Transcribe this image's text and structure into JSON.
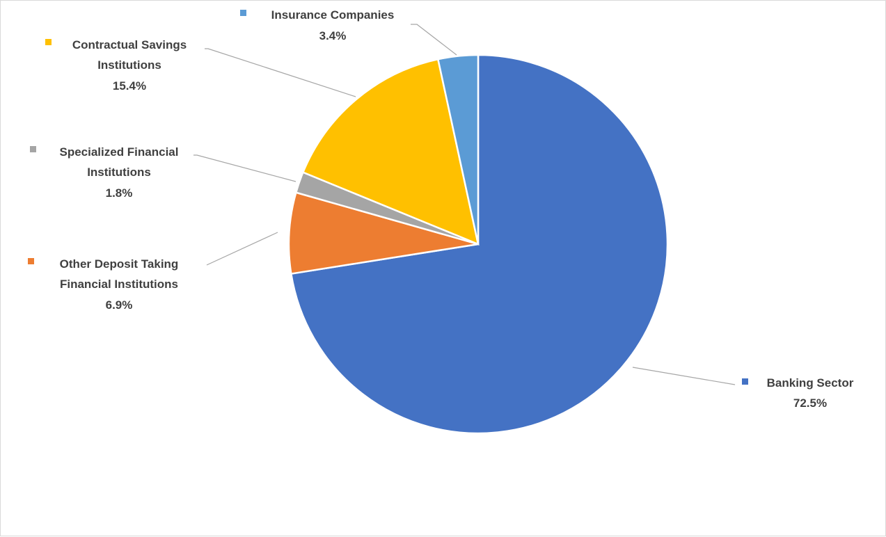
{
  "chart_data": {
    "type": "pie",
    "title": "",
    "start_angle_deg": 0,
    "direction": "clockwise",
    "slices": [
      {
        "name": "Banking Sector",
        "value": 72.5,
        "label": "72.5%",
        "color": "#4472C4"
      },
      {
        "name": "Other Deposit Taking Financial Institutions",
        "value": 6.9,
        "label": "6.9%",
        "color": "#ED7D31"
      },
      {
        "name": "Specialized Financial Institutions",
        "value": 1.8,
        "label": "1.8%",
        "color": "#A5A5A5"
      },
      {
        "name": "Contractual Savings Institutions",
        "value": 15.4,
        "label": "15.4%",
        "color": "#FFC000"
      },
      {
        "name": "Insurance Companies",
        "value": 3.4,
        "label": "3.4%",
        "color": "#5B9BD5"
      }
    ]
  }
}
